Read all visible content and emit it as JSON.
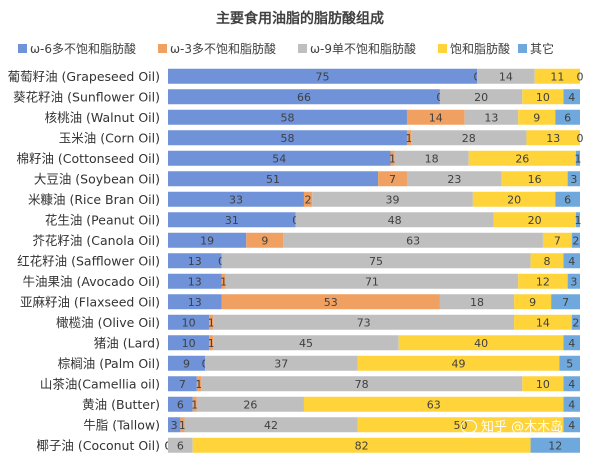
{
  "chart_data": {
    "type": "bar",
    "orientation": "horizontal",
    "stacked": true,
    "title": "主要食用油脂的脂肪酸组成",
    "legend_position": "top",
    "categories": [
      "葡萄籽油 (Grapeseed Oil)",
      "葵花籽油 (Sunflower Oil)",
      "核桃油 (Walnut Oil)",
      "玉米油 (Corn Oil)",
      "棉籽油 (Cottonseed Oil)",
      "大豆油 (Soybean Oil)",
      "米糠油 (Rice Bran Oil)",
      "花生油 (Peanut Oil)",
      "芥花籽油 (Canola Oil)",
      "红花籽油 (Safflower Oil)",
      "牛油果油 (Avocado Oil)",
      "亚麻籽油 (Flaxseed Oil)",
      "橄榄油 (Olive Oil)",
      "猪油 (Lard)",
      "棕榈油 (Palm Oil)",
      "山茶油(Camellia oil)",
      "黄油 (Butter)",
      "牛脂 (Tallow)",
      "椰子油 (Coconut Oil)"
    ],
    "series": [
      {
        "name": "ω-6多不饱和脂肪酸",
        "color": "#6f92d8",
        "values": [
          75,
          66,
          58,
          58,
          54,
          51,
          33,
          31,
          19,
          13,
          13,
          13,
          10,
          10,
          9,
          7,
          6,
          3,
          0
        ]
      },
      {
        "name": "ω-3多不饱和脂肪酸",
        "color": "#f0a060",
        "values": [
          0,
          0,
          14,
          1,
          1,
          7,
          2,
          0,
          9,
          0,
          1,
          53,
          1,
          1,
          0,
          1,
          1,
          1,
          0
        ]
      },
      {
        "name": "ω-9单不饱和脂肪酸",
        "color": "#bfbfbf",
        "values": [
          14,
          20,
          13,
          28,
          18,
          23,
          39,
          48,
          63,
          75,
          71,
          18,
          73,
          45,
          37,
          78,
          26,
          42,
          6
        ]
      },
      {
        "name": "饱和脂肪酸",
        "color": "#ffd43b",
        "values": [
          11,
          10,
          9,
          13,
          26,
          16,
          20,
          20,
          7,
          8,
          12,
          9,
          14,
          40,
          49,
          10,
          63,
          50,
          82
        ]
      },
      {
        "name": "其它",
        "color": "#6fa8dc",
        "values": [
          0,
          4,
          6,
          0,
          1,
          3,
          6,
          1,
          2,
          4,
          3,
          7,
          2,
          4,
          5,
          4,
          4,
          4,
          12
        ]
      }
    ],
    "xlim": [
      0,
      100
    ],
    "grid": false
  },
  "watermark": {
    "text": "知乎 @木木岛"
  }
}
